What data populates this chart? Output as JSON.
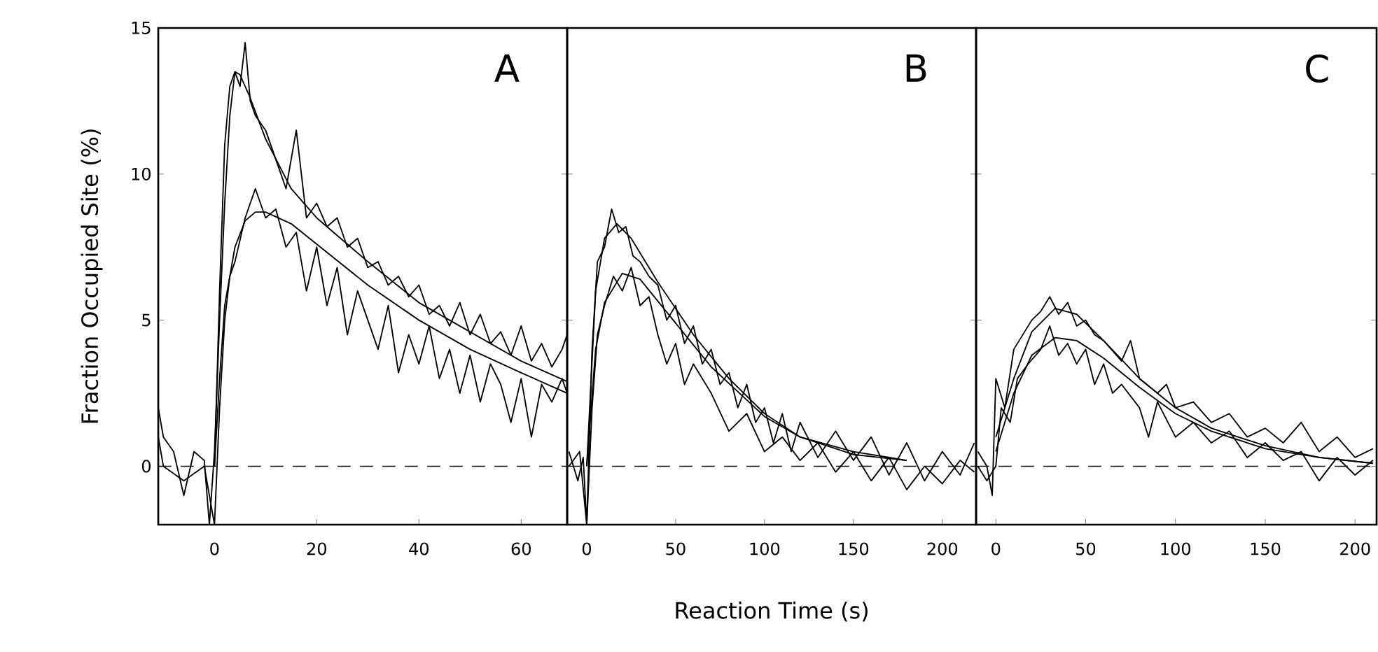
{
  "chart_data": [
    {
      "type": "line",
      "ylabel": "Fraction Occupied Site  (%)",
      "annotations": [
        "A"
      ],
      "xlim": [
        -11,
        69
      ],
      "xticks": [
        0,
        20,
        40,
        60
      ],
      "ylim": [
        -2,
        15
      ],
      "yticks": [
        0,
        5,
        10,
        15
      ],
      "ref_lines": [
        {
          "axis": "y",
          "value": 0,
          "color": "#000000",
          "line_style": "dashed"
        }
      ],
      "series": [
        {
          "color": "#000000",
          "x": [
            -11,
            -10,
            -8,
            -6,
            -4,
            -2,
            -1,
            0,
            1,
            2,
            3,
            4,
            5,
            6,
            7,
            8,
            10,
            12,
            14,
            16,
            18,
            20,
            22,
            24,
            26,
            28,
            30,
            32,
            34,
            36,
            38,
            40,
            42,
            44,
            46,
            48,
            50,
            52,
            54,
            56,
            58,
            60,
            62,
            64,
            66,
            68,
            69
          ],
          "values": [
            2,
            1,
            0.5,
            -1,
            0.5,
            0.2,
            -2,
            0.5,
            5,
            9,
            12,
            13.5,
            13,
            14.5,
            12.5,
            12,
            11.5,
            10.5,
            9.5,
            11.5,
            8.5,
            9,
            8.2,
            8.5,
            7.5,
            7.8,
            6.8,
            7,
            6.2,
            6.5,
            5.8,
            6.2,
            5.2,
            5.5,
            4.8,
            5.6,
            4.5,
            5.2,
            4.2,
            4.6,
            3.8,
            4.8,
            3.6,
            4.2,
            3.4,
            4,
            4.5
          ]
        },
        {
          "color": "#000000",
          "x": [
            -11,
            -10,
            -6,
            -2,
            0,
            1,
            2,
            3,
            4,
            6,
            8,
            10,
            12,
            14,
            16,
            18,
            20,
            22,
            24,
            26,
            28,
            30,
            32,
            34,
            36,
            38,
            40,
            42,
            44,
            46,
            48,
            50,
            52,
            54,
            56,
            58,
            60,
            62,
            64,
            66,
            68,
            69
          ],
          "values": [
            1,
            0,
            -0.5,
            0,
            -2,
            2,
            5,
            6.5,
            7,
            8.5,
            9.5,
            8.5,
            8.8,
            7.5,
            8,
            6,
            7.5,
            5.5,
            6.8,
            4.5,
            6,
            5,
            4,
            5.5,
            3.2,
            4.5,
            3.5,
            4.8,
            3,
            4,
            2.5,
            3.8,
            2.2,
            3.5,
            2.8,
            1.5,
            3,
            1,
            2.8,
            2.2,
            3,
            2.5
          ]
        },
        {
          "color": "#000000",
          "x": [
            0,
            1,
            2,
            3,
            4,
            5,
            7,
            10,
            15,
            20,
            30,
            40,
            50,
            60,
            69
          ],
          "values": [
            0,
            6,
            11,
            13,
            13.5,
            13.4,
            12.6,
            11.2,
            9.5,
            8.5,
            7,
            5.6,
            4.6,
            3.6,
            2.9
          ]
        },
        {
          "color": "#000000",
          "x": [
            0,
            1,
            2,
            4,
            6,
            8,
            10,
            15,
            20,
            30,
            40,
            50,
            60,
            69
          ],
          "values": [
            0,
            3,
            5.5,
            7.5,
            8.4,
            8.7,
            8.7,
            8.3,
            7.6,
            6.2,
            5,
            4,
            3.2,
            2.5
          ]
        }
      ]
    },
    {
      "type": "line",
      "xlabel": "Reaction Time  (s)",
      "annotations": [
        "B"
      ],
      "xlim": [
        -11,
        219
      ],
      "xticks": [
        0,
        50,
        100,
        150,
        200
      ],
      "ylim": [
        -2,
        15
      ],
      "yticks": [
        0,
        5,
        10,
        15
      ],
      "tick_labels": "x",
      "ref_lines": [
        {
          "axis": "y",
          "value": 0,
          "color": "#000000",
          "line_style": "dashed"
        }
      ],
      "series": [
        {
          "color": "#000000",
          "x": [
            -10,
            -5,
            -2,
            0,
            3,
            6,
            10,
            14,
            18,
            22,
            26,
            30,
            35,
            40,
            45,
            50,
            55,
            60,
            65,
            70,
            75,
            80,
            85,
            90,
            95,
            100,
            105,
            110,
            115,
            120,
            130,
            140,
            150,
            160,
            170,
            180,
            190,
            200,
            210,
            218
          ],
          "values": [
            0.5,
            -0.5,
            0.3,
            -2,
            4,
            7,
            7.5,
            8.8,
            8,
            8.2,
            7.2,
            7,
            6.5,
            6.2,
            5,
            5.5,
            4.2,
            4.8,
            3.5,
            4,
            2.8,
            3.2,
            2,
            2.8,
            1.5,
            2,
            0.8,
            1.8,
            0.5,
            1.5,
            0.3,
            1.2,
            0.2,
            1,
            -0.3,
            0.8,
            -0.5,
            0.5,
            -0.3,
            0.8
          ]
        },
        {
          "color": "#000000",
          "x": [
            -10,
            -4,
            0,
            3,
            6,
            10,
            15,
            20,
            25,
            30,
            35,
            40,
            45,
            50,
            55,
            60,
            70,
            80,
            90,
            100,
            110,
            120,
            130,
            140,
            150,
            160,
            170,
            180,
            190,
            200,
            210,
            218
          ],
          "values": [
            0,
            0.5,
            -2,
            2,
            4.5,
            5.5,
            6.5,
            6,
            6.8,
            5.5,
            5.8,
            4.5,
            3.5,
            4.2,
            2.8,
            3.5,
            2.5,
            1.2,
            1.8,
            0.5,
            1,
            0.2,
            0.8,
            -0.2,
            0.5,
            -0.5,
            0.3,
            -0.8,
            0,
            -0.6,
            0.2,
            -0.2
          ]
        },
        {
          "color": "#000000",
          "x": [
            0,
            5,
            10,
            17,
            25,
            40,
            60,
            80,
            100,
            120,
            150,
            180
          ],
          "values": [
            0,
            6,
            7.8,
            8.3,
            7.8,
            6.3,
            4.5,
            3,
            1.8,
            1,
            0.5,
            0.2
          ]
        },
        {
          "color": "#000000",
          "x": [
            0,
            5,
            10,
            20,
            30,
            50,
            70,
            100,
            120,
            150,
            180
          ],
          "values": [
            0,
            4,
            5.6,
            6.6,
            6.4,
            4.9,
            3.4,
            1.7,
            1,
            0.4,
            0.2
          ]
        }
      ]
    },
    {
      "type": "line",
      "annotations": [
        "C"
      ],
      "xlim": [
        -11,
        212
      ],
      "xticks": [
        0,
        50,
        100,
        150,
        200
      ],
      "ylim": [
        -2,
        15
      ],
      "yticks": [
        0,
        5,
        10,
        15
      ],
      "tick_labels": "x",
      "ref_lines": [
        {
          "axis": "y",
          "value": 0,
          "color": "#000000",
          "line_style": "dashed"
        }
      ],
      "series": [
        {
          "color": "#000000",
          "x": [
            -10,
            -5,
            -2,
            0,
            5,
            10,
            15,
            20,
            25,
            30,
            35,
            40,
            45,
            50,
            55,
            60,
            70,
            75,
            80,
            90,
            95,
            100,
            110,
            120,
            130,
            140,
            150,
            160,
            170,
            180,
            190,
            200,
            210
          ],
          "values": [
            0.5,
            0,
            -1,
            3,
            2,
            4,
            4.5,
            5,
            5.3,
            5.8,
            5.2,
            5.6,
            4.8,
            5,
            4.5,
            4.3,
            3.6,
            4.3,
            3,
            2.5,
            2.8,
            2,
            2.2,
            1.5,
            1.8,
            1,
            1.3,
            0.8,
            1.5,
            0.5,
            1,
            0.3,
            0.6
          ]
        },
        {
          "color": "#000000",
          "x": [
            -10,
            -5,
            0,
            3,
            8,
            12,
            18,
            25,
            30,
            35,
            40,
            45,
            50,
            55,
            60,
            65,
            70,
            80,
            85,
            90,
            100,
            110,
            120,
            130,
            140,
            150,
            160,
            170,
            180,
            190,
            200,
            210
          ],
          "values": [
            0,
            -0.5,
            0,
            2,
            1.5,
            3,
            3.5,
            4,
            4.8,
            3.8,
            4.2,
            3.5,
            4,
            2.8,
            3.5,
            2.5,
            2.8,
            2,
            1,
            2.2,
            1,
            1.5,
            0.8,
            1.2,
            0.3,
            0.8,
            0.2,
            0.5,
            -0.5,
            0.3,
            -0.3,
            0.2
          ]
        },
        {
          "color": "#000000",
          "x": [
            0,
            10,
            20,
            33,
            45,
            60,
            80,
            100,
            120,
            150,
            180,
            210
          ],
          "values": [
            1,
            3,
            4.6,
            5.4,
            5.2,
            4.3,
            3,
            2,
            1.3,
            0.7,
            0.3,
            0.1
          ]
        },
        {
          "color": "#000000",
          "x": [
            0,
            10,
            20,
            33,
            45,
            60,
            80,
            100,
            120,
            150,
            180,
            210
          ],
          "values": [
            0.5,
            2.5,
            3.8,
            4.4,
            4.3,
            3.7,
            2.7,
            1.8,
            1.2,
            0.6,
            0.3,
            0.1
          ]
        }
      ]
    }
  ]
}
